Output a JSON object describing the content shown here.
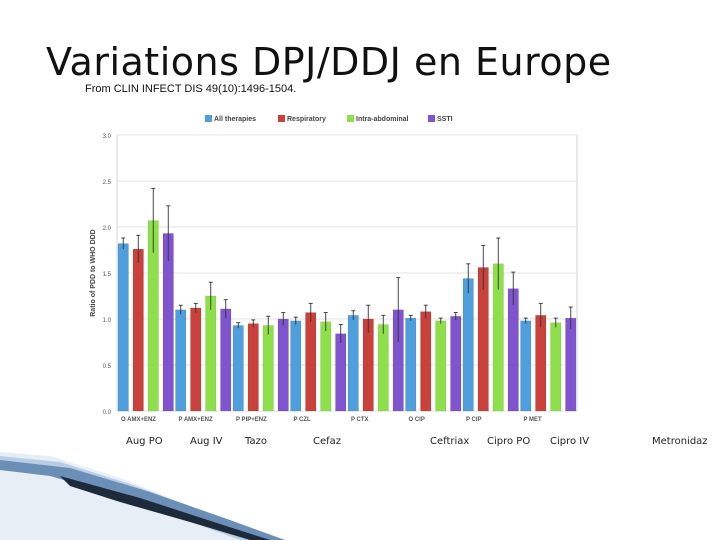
{
  "slide": {
    "title": "Variations DPJ/DDJ en Europe",
    "source": "From CLIN INFECT DIS 49(10):1496-1504."
  },
  "drug_labels": [
    "Aug PO",
    "Aug IV",
    "Tazo",
    "Cefaz",
    "Ceftriax",
    "Cipro PO",
    "Cipro IV",
    "Metronidaz"
  ],
  "chart_data": {
    "type": "bar",
    "title": "",
    "xlabel": "",
    "ylabel": "Ratio of PDD to WHO DDD",
    "ylim": [
      0,
      3.0
    ],
    "yticks": [
      "0.0",
      "0.5",
      "1.0",
      "1.5",
      "2.0",
      "2.5",
      "3.0"
    ],
    "legend_position": "top",
    "categories": [
      "O AMX+ENZ",
      "P AMX+ENZ",
      "P PIP+ENZ",
      "P CZL",
      "P CTX",
      "O CIP",
      "P CIP",
      "P MET"
    ],
    "series": [
      {
        "name": "All therapies",
        "color": "#4f9fdf",
        "values": [
          1.82,
          1.1,
          0.93,
          0.98,
          1.04,
          1.01,
          1.44,
          0.98
        ],
        "errors": [
          0.06,
          0.05,
          0.03,
          0.04,
          0.05,
          0.03,
          0.16,
          0.03
        ]
      },
      {
        "name": "Respiratory",
        "color": "#c9413a",
        "values": [
          1.76,
          1.12,
          0.95,
          1.07,
          1.0,
          1.08,
          1.56,
          1.04
        ],
        "errors": [
          0.15,
          0.05,
          0.04,
          0.1,
          0.15,
          0.07,
          0.24,
          0.13
        ]
      },
      {
        "name": "Intra-abdominal",
        "color": "#8ee04a",
        "values": [
          2.07,
          1.25,
          0.93,
          0.97,
          0.94,
          0.98,
          1.6,
          0.96
        ],
        "errors": [
          0.35,
          0.15,
          0.1,
          0.1,
          0.1,
          0.03,
          0.28,
          0.05
        ]
      },
      {
        "name": "SSTI",
        "color": "#8154cf",
        "values": [
          1.93,
          1.11,
          1.0,
          0.84,
          1.1,
          1.03,
          1.33,
          1.01
        ],
        "errors": [
          0.3,
          0.1,
          0.07,
          0.1,
          0.35,
          0.04,
          0.18,
          0.12
        ]
      }
    ]
  }
}
